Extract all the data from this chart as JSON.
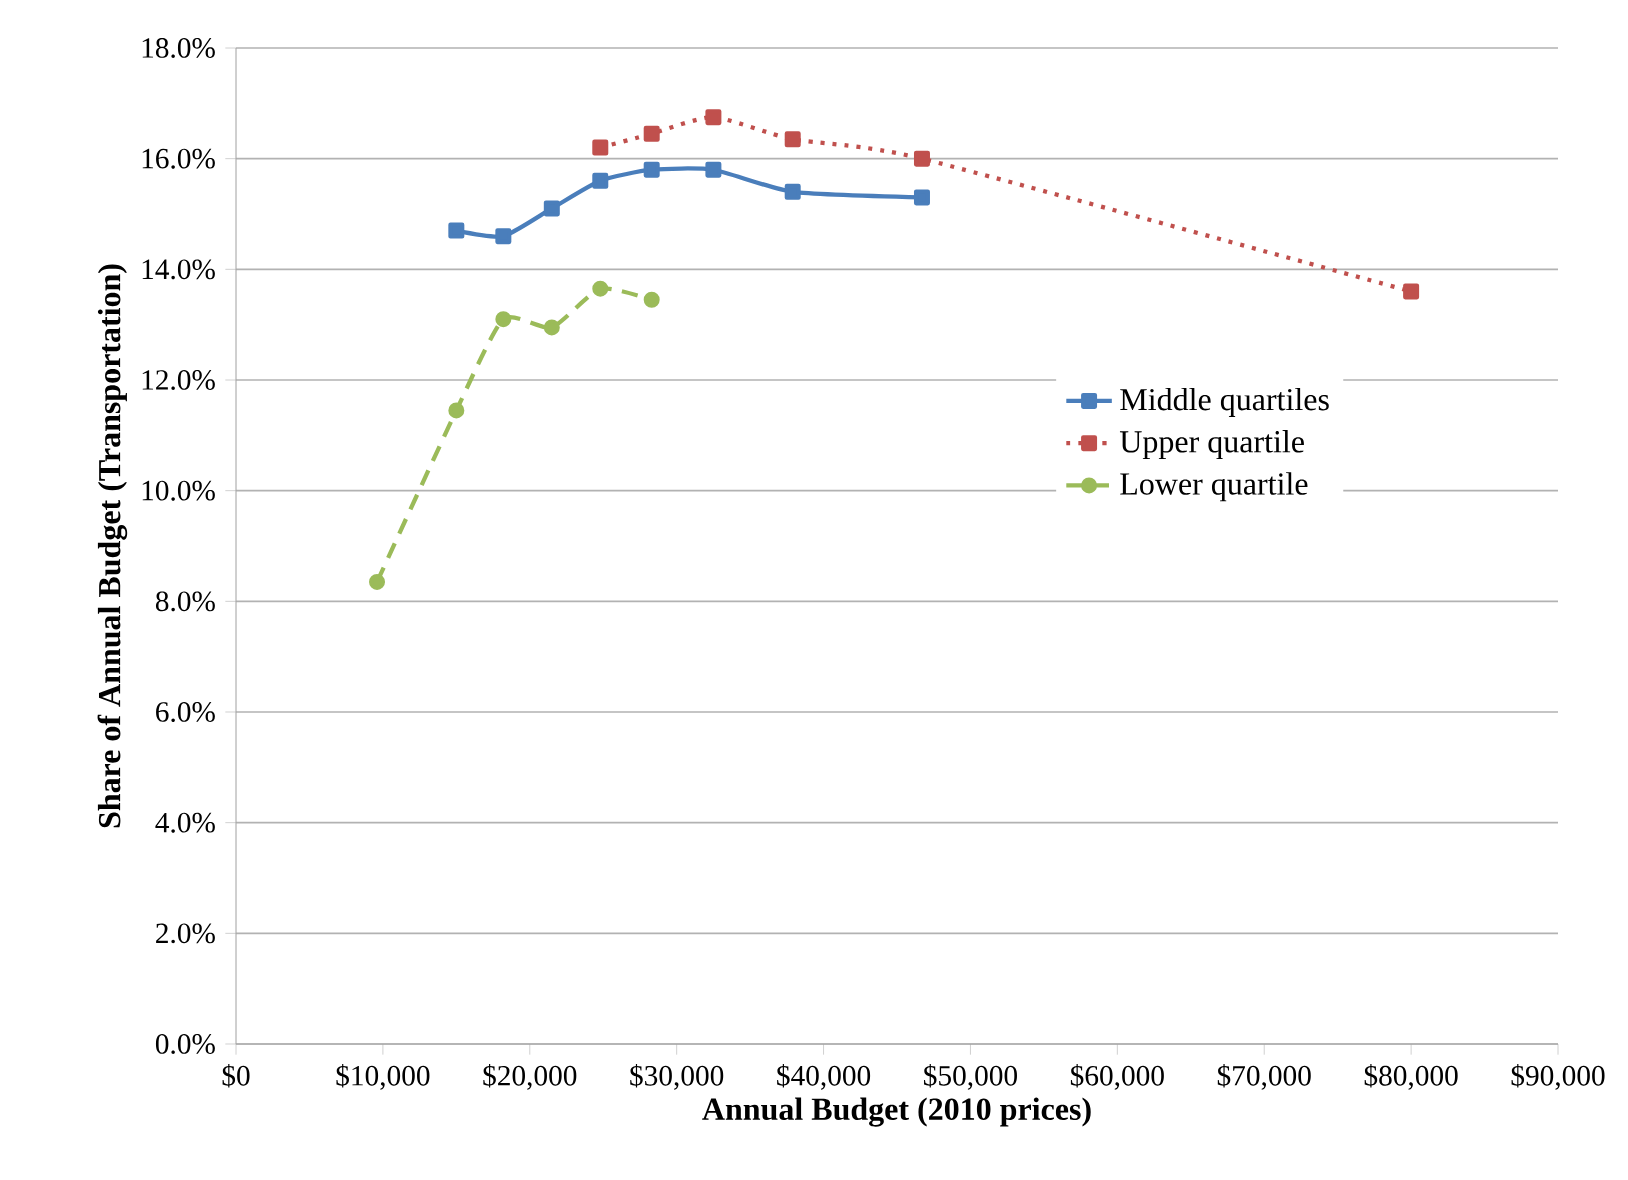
{
  "chart_data": {
    "type": "line",
    "xlabel": "Annual Budget (2010 prices)",
    "ylabel": "Share of Annual Budget (Transportation)",
    "xlim": [
      0,
      90000
    ],
    "xticks": [
      {
        "value": 0,
        "label": "$0"
      },
      {
        "value": 10000,
        "label": "$10,000"
      },
      {
        "value": 20000,
        "label": "$20,000"
      },
      {
        "value": 30000,
        "label": "$30,000"
      },
      {
        "value": 40000,
        "label": "$40,000"
      },
      {
        "value": 50000,
        "label": "$50,000"
      },
      {
        "value": 60000,
        "label": "$60,000"
      },
      {
        "value": 70000,
        "label": "$70,000"
      },
      {
        "value": 80000,
        "label": "$80,000"
      },
      {
        "value": 90000,
        "label": "$90,000"
      }
    ],
    "ylim": [
      0,
      18
    ],
    "yticks": [
      {
        "value": 0,
        "label": "0.0%"
      },
      {
        "value": 2,
        "label": "2.0%"
      },
      {
        "value": 4,
        "label": "4.0%"
      },
      {
        "value": 6,
        "label": "6.0%"
      },
      {
        "value": 8,
        "label": "8.0%"
      },
      {
        "value": 10,
        "label": "10.0%"
      },
      {
        "value": 12,
        "label": "12.0%"
      },
      {
        "value": 14,
        "label": "14.0%"
      },
      {
        "value": 16,
        "label": "16.0%"
      },
      {
        "value": 18,
        "label": "18.0%"
      }
    ],
    "grid": "y",
    "legend": "right",
    "series": [
      {
        "name": "Middle quartiles",
        "color": "#4a7ebb",
        "marker": "square",
        "line_style": "solid",
        "x": [
          15000,
          18200,
          21500,
          24800,
          28300,
          32500,
          37900,
          46700
        ],
        "values": [
          14.7,
          14.6,
          15.1,
          15.6,
          15.8,
          15.8,
          15.4,
          15.3
        ]
      },
      {
        "name": "Upper quartile",
        "color": "#c0504d",
        "marker": "square",
        "line_style": "dotted",
        "x": [
          24800,
          28300,
          32500,
          37900,
          46700,
          80000
        ],
        "values": [
          16.2,
          16.45,
          16.75,
          16.35,
          16.0,
          13.6
        ]
      },
      {
        "name": "Lower quartile",
        "color": "#9bbb59",
        "marker": "circle",
        "line_style": "dashed",
        "x": [
          9600,
          15000,
          18200,
          21500,
          24800,
          28300
        ],
        "values": [
          8.35,
          11.45,
          13.1,
          12.95,
          13.65,
          13.45
        ]
      }
    ]
  }
}
